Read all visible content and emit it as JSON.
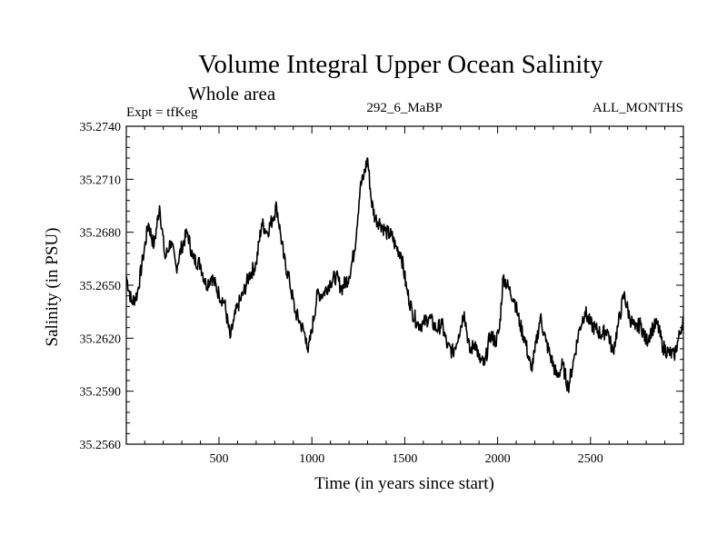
{
  "chart_data": {
    "type": "line",
    "title": "Volume Integral Upper Ocean Salinity",
    "subtitle": "Whole area",
    "experiment_label": "Expt = tfKeg",
    "center_label": "292_6_MaBP",
    "right_label": "ALL_MONTHS",
    "xlabel": "Time (in years since start)",
    "ylabel": "Salinity (in PSU)",
    "xlim": [
      1,
      3000
    ],
    "ylim": [
      35.256,
      35.274
    ],
    "xticks": [
      500,
      1000,
      1500,
      2000,
      2500
    ],
    "xtick_labels": [
      "500",
      "1000",
      "1500",
      "2000",
      "2500"
    ],
    "yticks": [
      35.256,
      35.259,
      35.262,
      35.265,
      35.268,
      35.271,
      35.274
    ],
    "ytick_labels": [
      "35.2560",
      "35.2590",
      "35.2620",
      "35.2650",
      "35.2680",
      "35.2710",
      "35.2740"
    ],
    "grid": false,
    "line_color": "#000000",
    "series": [
      {
        "x": [
          1,
          30,
          60,
          90,
          120,
          150,
          180,
          210,
          240,
          270,
          300,
          330,
          360,
          400,
          430,
          460,
          500,
          530,
          560,
          580,
          600,
          630,
          660,
          700,
          730,
          760,
          790,
          810,
          830,
          850,
          880,
          910,
          940,
          970,
          980,
          1000,
          1030,
          1060,
          1100,
          1130,
          1160,
          1200,
          1230,
          1260,
          1280,
          1300,
          1320,
          1340,
          1370,
          1400,
          1430,
          1450,
          1480,
          1510,
          1540,
          1570,
          1600,
          1630,
          1670,
          1700,
          1730,
          1760,
          1790,
          1820,
          1850,
          1880,
          1900,
          1930,
          1960,
          1990,
          2010,
          2030,
          2060,
          2090,
          2120,
          2150,
          2180,
          2200,
          2230,
          2260,
          2290,
          2320,
          2350,
          2380,
          2410,
          2440,
          2470,
          2500,
          2530,
          2560,
          2590,
          2620,
          2650,
          2680,
          2710,
          2740,
          2770,
          2800,
          2830,
          2860,
          2890,
          2920,
          2950,
          2980,
          3000
        ],
        "values": [
          35.2655,
          35.264,
          35.2645,
          35.2665,
          35.2685,
          35.2672,
          35.2695,
          35.2665,
          35.2675,
          35.266,
          35.2672,
          35.268,
          35.2665,
          35.2662,
          35.265,
          35.2655,
          35.2645,
          35.264,
          35.262,
          35.263,
          35.2638,
          35.2645,
          35.2655,
          35.2662,
          35.2685,
          35.268,
          35.2688,
          35.2695,
          35.268,
          35.2665,
          35.2652,
          35.2635,
          35.2628,
          35.262,
          35.2612,
          35.2625,
          35.2645,
          35.2645,
          35.2652,
          35.2655,
          35.2648,
          35.2655,
          35.267,
          35.2705,
          35.2712,
          35.2722,
          35.2698,
          35.2688,
          35.2685,
          35.268,
          35.2678,
          35.2672,
          35.2668,
          35.2648,
          35.2635,
          35.2628,
          35.2628,
          35.2632,
          35.2625,
          35.2628,
          35.2615,
          35.2612,
          35.2622,
          35.2635,
          35.2612,
          35.2618,
          35.2608,
          35.2605,
          35.2622,
          35.2618,
          35.2625,
          35.2655,
          35.2648,
          35.2642,
          35.2628,
          35.2618,
          35.2602,
          35.2612,
          35.2632,
          35.2618,
          35.2608,
          35.2598,
          35.2605,
          35.2592,
          35.2608,
          35.2625,
          35.2635,
          35.2628,
          35.2625,
          35.2622,
          35.2625,
          35.2612,
          35.2628,
          35.2645,
          35.2632,
          35.2625,
          35.2628,
          35.2618,
          35.2625,
          35.2628,
          35.2615,
          35.2612,
          35.261,
          35.2622,
          35.2632
        ]
      }
    ]
  }
}
